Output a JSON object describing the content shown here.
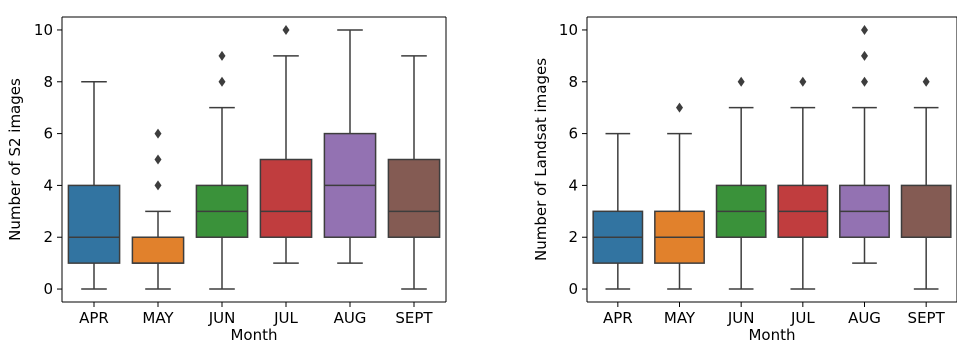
{
  "chart_data": [
    {
      "type": "boxplot",
      "xlabel": "Month",
      "ylabel": "Number of S2 images",
      "ylim": [
        -0.5,
        10.5
      ],
      "yticks": [
        0,
        2,
        4,
        6,
        8,
        10
      ],
      "categories": [
        "APR",
        "MAY",
        "JUN",
        "JUL",
        "AUG",
        "SEPT"
      ],
      "colors": [
        "#3274a1",
        "#e1812c",
        "#3a923a",
        "#c03d3e",
        "#9372b2",
        "#845b53"
      ],
      "boxes": [
        {
          "min": 0,
          "q1": 1,
          "median": 2,
          "q3": 4,
          "max": 8,
          "outliers": []
        },
        {
          "min": 0,
          "q1": 1,
          "median": 1,
          "q3": 2,
          "max": 3,
          "outliers": [
            4,
            5,
            6
          ]
        },
        {
          "min": 0,
          "q1": 2,
          "median": 3,
          "q3": 4,
          "max": 7,
          "outliers": [
            8,
            9
          ]
        },
        {
          "min": 1,
          "q1": 2,
          "median": 3,
          "q3": 5,
          "max": 9,
          "outliers": [
            10
          ]
        },
        {
          "min": 1,
          "q1": 2,
          "median": 4,
          "q3": 6,
          "max": 10,
          "outliers": []
        },
        {
          "min": 0,
          "q1": 2,
          "median": 3,
          "q3": 5,
          "max": 9,
          "outliers": []
        }
      ],
      "grid": false,
      "legend": "none"
    },
    {
      "type": "boxplot",
      "xlabel": "Month",
      "ylabel": "Number of Landsat images",
      "ylim": [
        -0.5,
        10.5
      ],
      "yticks": [
        0,
        2,
        4,
        6,
        8,
        10
      ],
      "categories": [
        "APR",
        "MAY",
        "JUN",
        "JUL",
        "AUG",
        "SEPT"
      ],
      "colors": [
        "#3274a1",
        "#e1812c",
        "#3a923a",
        "#c03d3e",
        "#9372b2",
        "#845b53"
      ],
      "boxes": [
        {
          "min": 0,
          "q1": 1,
          "median": 2,
          "q3": 3,
          "max": 6,
          "outliers": []
        },
        {
          "min": 0,
          "q1": 1,
          "median": 2,
          "q3": 3,
          "max": 6,
          "outliers": [
            7
          ]
        },
        {
          "min": 0,
          "q1": 2,
          "median": 3,
          "q3": 4,
          "max": 7,
          "outliers": [
            8
          ]
        },
        {
          "min": 0,
          "q1": 2,
          "median": 3,
          "q3": 4,
          "max": 7,
          "outliers": [
            8
          ]
        },
        {
          "min": 1,
          "q1": 2,
          "median": 3,
          "q3": 4,
          "max": 7,
          "outliers": [
            8,
            9,
            10
          ]
        },
        {
          "min": 0,
          "q1": 2,
          "median": 2,
          "q3": 4,
          "max": 7,
          "outliers": [
            8
          ]
        }
      ],
      "grid": false,
      "legend": "none"
    }
  ]
}
